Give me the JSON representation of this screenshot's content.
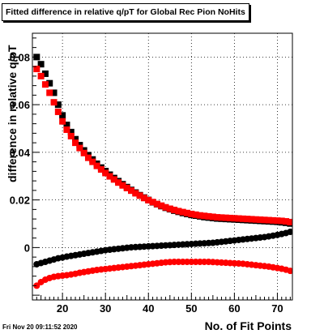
{
  "chart_data": {
    "type": "scatter",
    "title": "Fitted difference in relative q/pT for Global Rec Pion NoHits",
    "xlabel": "No. of Fit Points",
    "ylabel": "difference in relative q/pT",
    "xlim": [
      13,
      73.5
    ],
    "ylim": [
      -0.022,
      0.09
    ],
    "x_ticks": [
      20,
      30,
      40,
      50,
      60,
      70
    ],
    "y_ticks": [
      0,
      0.02,
      0.04,
      0.06,
      0.08
    ],
    "y_tick_labels": [
      "0",
      "0.02",
      "0.04",
      "0.06",
      "0.08"
    ],
    "grid": true,
    "x": [
      14,
      15,
      16,
      17,
      18,
      19,
      20,
      21,
      22,
      23,
      24,
      25,
      26,
      27,
      28,
      29,
      30,
      31,
      32,
      33,
      34,
      35,
      36,
      37,
      38,
      39,
      40,
      41,
      42,
      43,
      44,
      45,
      46,
      47,
      48,
      49,
      50,
      51,
      52,
      53,
      54,
      55,
      56,
      57,
      58,
      59,
      60,
      61,
      62,
      63,
      64,
      65,
      66,
      67,
      68,
      69,
      70,
      71,
      72,
      73
    ],
    "series": [
      {
        "color": "#000000",
        "marker": "square",
        "values": [
          0.08,
          0.077,
          0.073,
          0.069,
          0.065,
          0.06,
          0.0555,
          0.0515,
          0.0485,
          0.0455,
          0.043,
          0.0408,
          0.0388,
          0.037,
          0.0352,
          0.0336,
          0.0321,
          0.0306,
          0.0292,
          0.0279,
          0.0266,
          0.0254,
          0.0242,
          0.0231,
          0.022,
          0.021,
          0.02,
          0.019,
          0.0182,
          0.0174,
          0.0167,
          0.0161,
          0.0155,
          0.015,
          0.0145,
          0.0141,
          0.0137,
          0.0134,
          0.0131,
          0.0128,
          0.0126,
          0.0124,
          0.0122,
          0.0121,
          0.012,
          0.0119,
          0.0118,
          0.0117,
          0.0116,
          0.0115,
          0.0114,
          0.0113,
          0.0112,
          0.0111,
          0.011,
          0.0109,
          0.0108,
          0.0106,
          0.0104,
          0.0101
        ]
      },
      {
        "color": "#ff0000",
        "marker": "square",
        "values": [
          0.075,
          0.072,
          0.0685,
          0.065,
          0.061,
          0.057,
          0.053,
          0.0495,
          0.0468,
          0.044,
          0.0418,
          0.0397,
          0.0377,
          0.036,
          0.0343,
          0.0328,
          0.0313,
          0.0299,
          0.0286,
          0.0273,
          0.0261,
          0.025,
          0.0239,
          0.0228,
          0.0218,
          0.0208,
          0.0199,
          0.0191,
          0.0183,
          0.0176,
          0.0169,
          0.0163,
          0.0158,
          0.0153,
          0.0149,
          0.0145,
          0.0141,
          0.0138,
          0.0135,
          0.0133,
          0.0131,
          0.0129,
          0.0127,
          0.0126,
          0.0125,
          0.0124,
          0.0123,
          0.0122,
          0.0121,
          0.012,
          0.0119,
          0.0118,
          0.0117,
          0.0116,
          0.0115,
          0.0114,
          0.0113,
          0.0112,
          0.011,
          0.0107
        ]
      },
      {
        "color": "#000000",
        "marker": "circle",
        "values": [
          -0.007,
          -0.0065,
          -0.006,
          -0.0055,
          -0.005,
          -0.0045,
          -0.0042,
          -0.0038,
          -0.0035,
          -0.0032,
          -0.0029,
          -0.0026,
          -0.0023,
          -0.002,
          -0.0017,
          -0.0014,
          -0.0011,
          -0.0009,
          -0.0007,
          -0.0005,
          -0.0003,
          -0.0001,
          0.0001,
          0.0002,
          0.0003,
          0.0004,
          0.0005,
          0.0006,
          0.0007,
          0.0008,
          0.0009,
          0.001,
          0.0011,
          0.0012,
          0.0013,
          0.0014,
          0.0015,
          0.0016,
          0.0017,
          0.0018,
          0.0019,
          0.002,
          0.0022,
          0.0024,
          0.0026,
          0.0028,
          0.003,
          0.0032,
          0.0034,
          0.0036,
          0.0038,
          0.004,
          0.0042,
          0.0044,
          0.0047,
          0.005,
          0.0053,
          0.0057,
          0.0061,
          0.0066
        ]
      },
      {
        "color": "#ff0000",
        "marker": "circle",
        "values": [
          -0.016,
          -0.0145,
          -0.0135,
          -0.0128,
          -0.0123,
          -0.012,
          -0.0118,
          -0.0116,
          -0.0113,
          -0.011,
          -0.0106,
          -0.0103,
          -0.01,
          -0.0097,
          -0.0094,
          -0.0092,
          -0.009,
          -0.0088,
          -0.0086,
          -0.0084,
          -0.0082,
          -0.008,
          -0.0078,
          -0.0076,
          -0.0074,
          -0.0072,
          -0.007,
          -0.0068,
          -0.0066,
          -0.0064,
          -0.0062,
          -0.0061,
          -0.006,
          -0.006,
          -0.006,
          -0.006,
          -0.006,
          -0.006,
          -0.006,
          -0.006,
          -0.006,
          -0.0061,
          -0.0062,
          -0.0063,
          -0.0064,
          -0.0065,
          -0.0066,
          -0.0067,
          -0.0068,
          -0.007,
          -0.0072,
          -0.0074,
          -0.0076,
          -0.0078,
          -0.008,
          -0.0083,
          -0.0086,
          -0.0089,
          -0.0093,
          -0.0098
        ]
      }
    ]
  },
  "footer": {
    "timestamp": "Fri Nov 20 09:11:52 2020"
  }
}
